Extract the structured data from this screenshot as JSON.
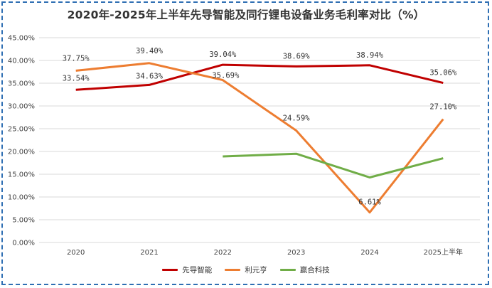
{
  "chart_data": {
    "type": "line",
    "title": "2020年-2025年上半年先导智能及同行锂电设备业务毛利率对比（%）",
    "categories": [
      "2020",
      "2021",
      "2022",
      "2023",
      "2024",
      "2025上半年"
    ],
    "ylim": [
      0,
      45
    ],
    "yticks": [
      "0.00%",
      "5.00%",
      "10.00%",
      "15.00%",
      "20.00%",
      "25.00%",
      "30.00%",
      "35.00%",
      "40.00%",
      "45.00%"
    ],
    "grid": true,
    "legend_position": "bottom",
    "series": [
      {
        "name": "先导智能",
        "color": "#c00000",
        "values": [
          33.54,
          34.63,
          39.04,
          38.69,
          38.94,
          35.06
        ],
        "labels": [
          "33.54%",
          "34.63%",
          "39.04%",
          "38.69%",
          "38.94%",
          "35.06%"
        ]
      },
      {
        "name": "利元亨",
        "color": "#ed7d31",
        "values": [
          37.75,
          39.4,
          35.69,
          24.59,
          6.61,
          27.1
        ],
        "labels": [
          "37.75%",
          "39.40%",
          "35.69%",
          "24.59%",
          "6.61%",
          "27.10%"
        ]
      },
      {
        "name": "赢合科技",
        "color": "#70ad47",
        "values": [
          null,
          null,
          18.9,
          19.5,
          14.3,
          18.5
        ],
        "labels": [
          null,
          null,
          null,
          null,
          null,
          null
        ]
      }
    ]
  }
}
